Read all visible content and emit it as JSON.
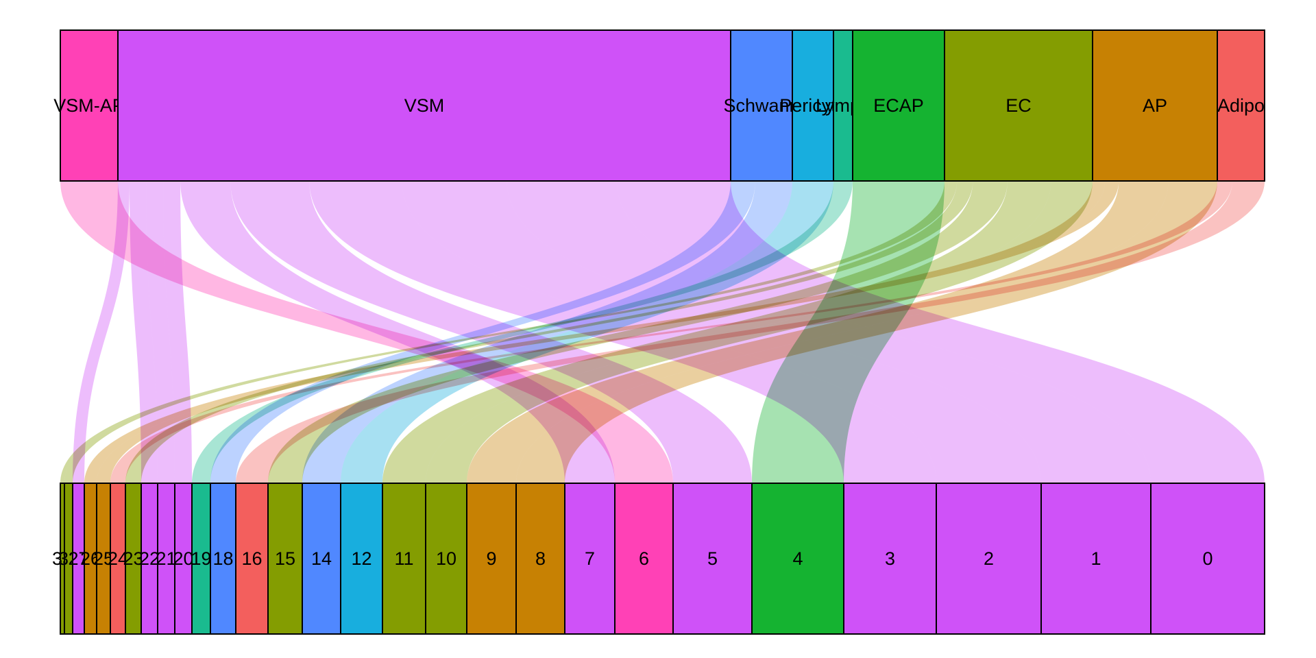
{
  "diagram": {
    "type": "alluvial",
    "top_axis": [
      {
        "id": "VSM-AP",
        "label": "VSM-AP",
        "color": "#FF41B6"
      },
      {
        "id": "VSM",
        "label": "VSM",
        "color": "#CF52F8"
      },
      {
        "id": "Schwann",
        "label": "Schwann",
        "color": "#5088FF"
      },
      {
        "id": "Pericyte",
        "label": "Pericyte",
        "color": "#18AEDE"
      },
      {
        "id": "Lymph",
        "label": "Lymph",
        "color": "#1ABB8F"
      },
      {
        "id": "ECAP",
        "label": "ECAP",
        "color": "#15B331"
      },
      {
        "id": "EC",
        "label": "EC",
        "color": "#849D01"
      },
      {
        "id": "AP",
        "label": "AP",
        "color": "#C78103"
      },
      {
        "id": "Adipo",
        "label": "Adipo",
        "color": "#F35F5D"
      }
    ],
    "bottom_axis": [
      {
        "id": "33",
        "label": "33",
        "color": "#849D01"
      },
      {
        "id": "32",
        "label": "32",
        "color": "#849D01"
      },
      {
        "id": "27",
        "label": "27",
        "color": "#CF52F8"
      },
      {
        "id": "26",
        "label": "26",
        "color": "#C78103"
      },
      {
        "id": "25",
        "label": "25",
        "color": "#C78103"
      },
      {
        "id": "24",
        "label": "24",
        "color": "#F35F5D"
      },
      {
        "id": "23",
        "label": "23",
        "color": "#849D01"
      },
      {
        "id": "22",
        "label": "22",
        "color": "#CF52F8"
      },
      {
        "id": "21",
        "label": "21",
        "color": "#CF52F8"
      },
      {
        "id": "20",
        "label": "20",
        "color": "#CF52F8"
      },
      {
        "id": "19",
        "label": "19",
        "color": "#1ABB8F"
      },
      {
        "id": "18",
        "label": "18",
        "color": "#5088FF"
      },
      {
        "id": "16",
        "label": "16",
        "color": "#F35F5D"
      },
      {
        "id": "15",
        "label": "15",
        "color": "#849D01"
      },
      {
        "id": "14",
        "label": "14",
        "color": "#5088FF"
      },
      {
        "id": "12",
        "label": "12",
        "color": "#18AEDE"
      },
      {
        "id": "11",
        "label": "11",
        "color": "#849D01"
      },
      {
        "id": "10",
        "label": "10",
        "color": "#849D01"
      },
      {
        "id": "9",
        "label": "9",
        "color": "#C78103"
      },
      {
        "id": "8",
        "label": "8",
        "color": "#C78103"
      },
      {
        "id": "7",
        "label": "7",
        "color": "#CF52F8"
      },
      {
        "id": "6",
        "label": "6",
        "color": "#FF41B6"
      },
      {
        "id": "5",
        "label": "5",
        "color": "#CF52F8"
      },
      {
        "id": "4",
        "label": "4",
        "color": "#15B331"
      },
      {
        "id": "3",
        "label": "3",
        "color": "#CF52F8"
      },
      {
        "id": "2",
        "label": "2",
        "color": "#CF52F8"
      },
      {
        "id": "1",
        "label": "1",
        "color": "#CF52F8"
      },
      {
        "id": "0",
        "label": "0",
        "color": "#CF52F8"
      }
    ],
    "flows": [
      {
        "from": "VSM-AP",
        "to": "6",
        "color": "#FF41B6"
      },
      {
        "from": "VSM",
        "to": "27",
        "color": "#CF52F8"
      },
      {
        "from": "VSM",
        "to": "22",
        "color": "#CF52F8"
      },
      {
        "from": "VSM",
        "to": "21",
        "color": "#CF52F8"
      },
      {
        "from": "VSM",
        "to": "20",
        "color": "#CF52F8"
      },
      {
        "from": "VSM",
        "to": "7",
        "color": "#CF52F8"
      },
      {
        "from": "VSM",
        "to": "5",
        "color": "#CF52F8"
      },
      {
        "from": "VSM",
        "to": "3",
        "color": "#CF52F8"
      },
      {
        "from": "VSM",
        "to": "2",
        "color": "#CF52F8"
      },
      {
        "from": "VSM",
        "to": "1",
        "color": "#CF52F8"
      },
      {
        "from": "VSM",
        "to": "0",
        "color": "#CF52F8"
      },
      {
        "from": "Schwann",
        "to": "18",
        "color": "#5088FF"
      },
      {
        "from": "Schwann",
        "to": "14",
        "color": "#5088FF"
      },
      {
        "from": "Pericyte",
        "to": "12",
        "color": "#18AEDE"
      },
      {
        "from": "Lymph",
        "to": "19",
        "color": "#1ABB8F"
      },
      {
        "from": "ECAP",
        "to": "4",
        "color": "#15B331"
      },
      {
        "from": "EC",
        "to": "33",
        "color": "#849D01"
      },
      {
        "from": "EC",
        "to": "32",
        "color": "#849D01"
      },
      {
        "from": "EC",
        "to": "23",
        "color": "#849D01"
      },
      {
        "from": "EC",
        "to": "15",
        "color": "#849D01"
      },
      {
        "from": "EC",
        "to": "11",
        "color": "#849D01"
      },
      {
        "from": "EC",
        "to": "10",
        "color": "#849D01"
      },
      {
        "from": "AP",
        "to": "26",
        "color": "#C78103"
      },
      {
        "from": "AP",
        "to": "25",
        "color": "#C78103"
      },
      {
        "from": "AP",
        "to": "9",
        "color": "#C78103"
      },
      {
        "from": "AP",
        "to": "8",
        "color": "#C78103"
      },
      {
        "from": "Adipo",
        "to": "24",
        "color": "#F35F5D"
      },
      {
        "from": "Adipo",
        "to": "16",
        "color": "#F35F5D"
      }
    ]
  }
}
